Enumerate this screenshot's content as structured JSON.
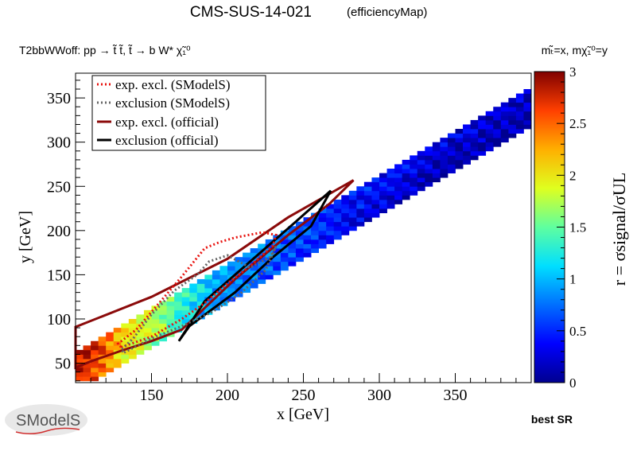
{
  "header": {
    "title": "CMS-SUS-14-021",
    "subtitle": "(efficiencyMap)",
    "process": "T2bbWWoff: pp  → t̃ t̃, t̃  → b W*  χ̃₁⁰",
    "mass_note": "mₜ̃=x, mχ̃₁⁰=y"
  },
  "footer": {
    "best_sr": "best SR",
    "logo_text": "SModelS"
  },
  "colors": {
    "exp_smodels": "#e8130f",
    "obs_smodels": "#666666",
    "exp_official": "#8b0a0a",
    "obs_official": "#000000"
  },
  "chart_data": {
    "type": "heatmap",
    "xlabel": "x [GeV]",
    "ylabel": "y [GeV]",
    "zlabel": "r = σsignal/σUL",
    "xlim": [
      100,
      400
    ],
    "ylim": [
      28,
      378
    ],
    "zlim": [
      0,
      3
    ],
    "x_ticks": [
      150,
      200,
      250,
      300,
      350
    ],
    "y_ticks": [
      50,
      100,
      150,
      200,
      250,
      300,
      350
    ],
    "z_ticks": [
      0,
      0.5,
      1,
      1.5,
      2,
      2.5,
      3
    ],
    "cell_size": 5,
    "band": {
      "description": "Valid region where (x - y) lies between about 38 and 80 GeV; r decreases with increasing x.",
      "dx_min": 38,
      "dx_max": 80,
      "r_profile": [
        [
          100,
          2.9
        ],
        [
          115,
          2.75
        ],
        [
          130,
          2.2
        ],
        [
          145,
          1.95
        ],
        [
          160,
          1.7
        ],
        [
          175,
          1.3
        ],
        [
          190,
          1.05
        ],
        [
          205,
          0.95
        ],
        [
          225,
          0.85
        ],
        [
          250,
          0.7
        ],
        [
          275,
          0.55
        ],
        [
          300,
          0.45
        ],
        [
          330,
          0.35
        ],
        [
          360,
          0.3
        ],
        [
          395,
          0.25
        ]
      ]
    },
    "legend": {
      "position": "top-left",
      "entries": [
        {
          "label": "exp. excl. (SModelS)",
          "style": "dotted",
          "color_key": "exp_smodels"
        },
        {
          "label": "exclusion (SModelS)",
          "style": "dotted",
          "color_key": "obs_smodels"
        },
        {
          "label": "exp. excl. (official)",
          "style": "solid",
          "color_key": "exp_official"
        },
        {
          "label": "exclusion (official)",
          "style": "solid",
          "color_key": "obs_official"
        }
      ]
    },
    "contours": {
      "exp_official": [
        [
          100,
          91
        ],
        [
          150,
          125
        ],
        [
          200,
          168
        ],
        [
          240,
          215
        ],
        [
          283,
          257
        ],
        [
          267,
          230
        ],
        [
          240,
          195
        ],
        [
          205,
          145
        ],
        [
          170,
          88
        ],
        [
          150,
          75
        ],
        [
          130,
          64
        ],
        [
          110,
          52
        ],
        [
          100,
          45
        ]
      ],
      "obs_official": [
        [
          268,
          245
        ],
        [
          245,
          210
        ],
        [
          215,
          165
        ],
        [
          185,
          120
        ],
        [
          168,
          75
        ],
        [
          175,
          92
        ],
        [
          205,
          130
        ],
        [
          230,
          170
        ],
        [
          255,
          205
        ],
        [
          268,
          245
        ]
      ],
      "exp_smodels": [
        [
          130,
          68
        ],
        [
          150,
          80
        ],
        [
          170,
          100
        ],
        [
          185,
          118
        ],
        [
          200,
          140
        ],
        [
          215,
          160
        ],
        [
          230,
          183
        ],
        [
          232,
          195
        ],
        [
          223,
          198
        ],
        [
          205,
          192
        ],
        [
          195,
          187
        ],
        [
          185,
          180
        ],
        [
          178,
          165
        ],
        [
          170,
          148
        ],
        [
          155,
          118
        ],
        [
          140,
          88
        ],
        [
          128,
          72
        ],
        [
          130,
          68
        ]
      ],
      "obs_smodels": [
        [
          132,
          62
        ],
        [
          150,
          78
        ],
        [
          170,
          92
        ],
        [
          190,
          108
        ],
        [
          208,
          128
        ],
        [
          225,
          155
        ],
        [
          232,
          182
        ],
        [
          228,
          170
        ],
        [
          215,
          158
        ],
        [
          200,
          172
        ],
        [
          188,
          165
        ],
        [
          180,
          150
        ],
        [
          165,
          132
        ],
        [
          150,
          105
        ],
        [
          138,
          78
        ],
        [
          130,
          65
        ],
        [
          132,
          62
        ]
      ]
    }
  }
}
